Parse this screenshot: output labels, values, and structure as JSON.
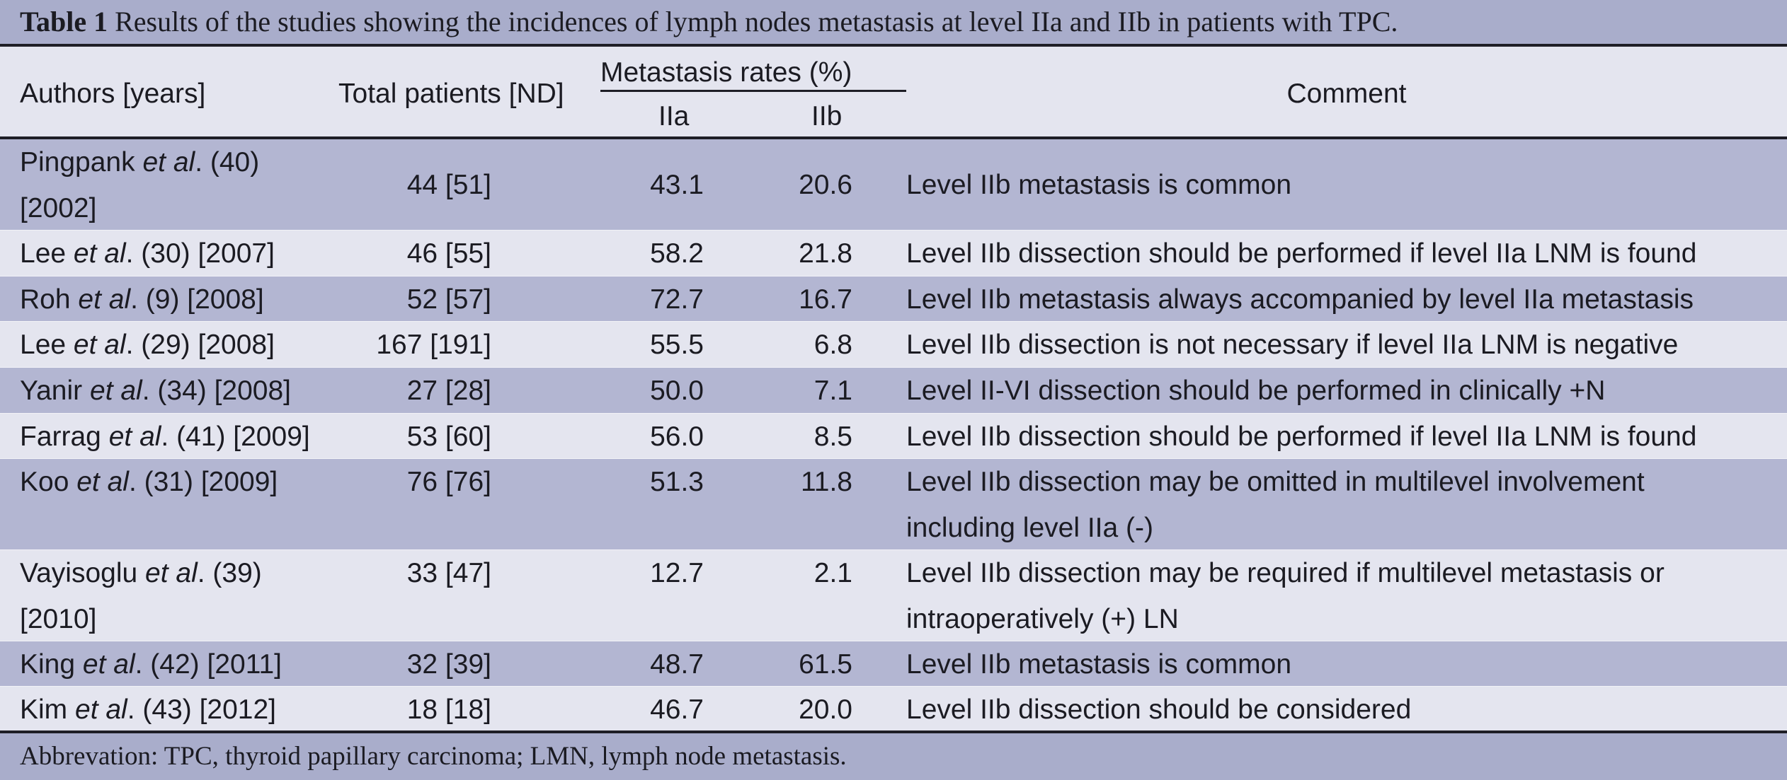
{
  "caption": {
    "label": "Table 1",
    "text": " Results of the studies showing the incidences of lymph nodes metastasis at level IIa and IIb in patients with TPC."
  },
  "header": {
    "authors": "Authors [years]",
    "total": "Total patients [ND]",
    "rates": "Metastasis rates (%)",
    "iia": "IIa",
    "iib": "IIb",
    "comment": "Comment"
  },
  "rows": [
    {
      "a1": "Pingpank ",
      "ae": "et al",
      "a2": ". (40)",
      "a3": "[2002]",
      "total": "44 [51]",
      "iia": "43.1",
      "iib": "20.6",
      "c1": "Level IIb metastasis is common",
      "c2": ""
    },
    {
      "a1": "Lee ",
      "ae": "et al",
      "a2": ". (30) [2007]",
      "a3": "",
      "total": "46 [55]",
      "iia": "58.2",
      "iib": "21.8",
      "c1": "Level IIb dissection should be performed if level IIa LNM is found",
      "c2": ""
    },
    {
      "a1": "Roh ",
      "ae": "et al",
      "a2": ". (9) [2008]",
      "a3": "",
      "total": "52 [57]",
      "iia": "72.7",
      "iib": "16.7",
      "c1": "Level IIb metastasis always accompanied by level IIa metastasis",
      "c2": ""
    },
    {
      "a1": "Lee ",
      "ae": "et al",
      "a2": ". (29) [2008]",
      "a3": "",
      "total": "167 [191]",
      "iia": "55.5",
      "iib": "6.8",
      "c1": "Level IIb dissection is not necessary if level IIa LNM is negative",
      "c2": ""
    },
    {
      "a1": "Yanir ",
      "ae": "et al",
      "a2": ". (34) [2008]",
      "a3": "",
      "total": "27 [28]",
      "iia": "50.0",
      "iib": "7.1",
      "c1": "Level II-VI dissection should be performed in clinically +N",
      "c2": ""
    },
    {
      "a1": "Farrag ",
      "ae": "et al",
      "a2": ". (41) [2009]",
      "a3": "",
      "total": "53 [60]",
      "iia": "56.0",
      "iib": "8.5",
      "c1": "Level IIb dissection should be performed if  level IIa LNM is found",
      "c2": ""
    },
    {
      "a1": "Koo ",
      "ae": "et al",
      "a2": ". (31) [2009]",
      "a3": "",
      "total": "76 [76]",
      "iia": "51.3",
      "iib": "11.8",
      "c1": "Level IIb dissection may be omitted in  multilevel involvement",
      "c2": "including level IIa (-)"
    },
    {
      "a1": "Vayisoglu ",
      "ae": "et al",
      "a2": ". (39)",
      "a3": "[2010]",
      "total": "33 [47]",
      "iia": "12.7",
      "iib": "2.1",
      "c1": "Level IIb dissection may be required if multilevel metastasis or",
      "c2": "intraoperatively (+) LN"
    },
    {
      "a1": "King ",
      "ae": "et al",
      "a2": ". (42) [2011]",
      "a3": "",
      "total": "32 [39]",
      "iia": "48.7",
      "iib": "61.5",
      "c1": "Level IIb metastasis is common",
      "c2": ""
    },
    {
      "a1": "Kim ",
      "ae": "et al",
      "a2": ". (43) [2012]",
      "a3": "",
      "total": "18 [18]",
      "iia": "46.7",
      "iib": "20.0",
      "c1": "Level IIb dissection should be considered",
      "c2": ""
    }
  ],
  "footer": "Abbrevation: TPC, thyroid papillary carcinoma; LMN, lymph node metastasis.",
  "colors": {
    "caption_bg": "#a9adcb",
    "row_shade": "#b3b6d2",
    "row_light": "#e4e5ef",
    "rule": "#1e1e26"
  }
}
